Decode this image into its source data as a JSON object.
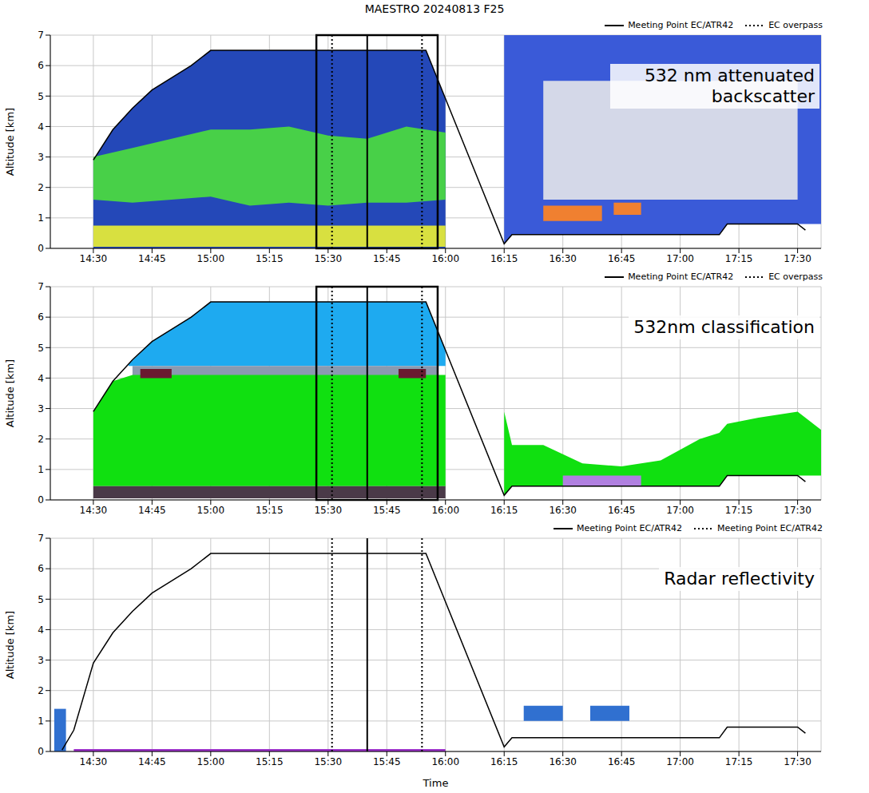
{
  "title": "MAESTRO 20240813 F25",
  "chart_data": [
    {
      "type": "area",
      "title": "532 nm attenuated backscatter",
      "y_label": "Altitude [km]",
      "xlim": [
        859,
        1056
      ],
      "xticks": [
        {
          "value": 870,
          "label": "14:30"
        },
        {
          "value": 885,
          "label": "14:45"
        },
        {
          "value": 900,
          "label": "15:00"
        },
        {
          "value": 915,
          "label": "15:15"
        },
        {
          "value": 930,
          "label": "15:30"
        },
        {
          "value": 945,
          "label": "15:45"
        },
        {
          "value": 960,
          "label": "16:00"
        },
        {
          "value": 975,
          "label": "16:15"
        },
        {
          "value": 990,
          "label": "16:30"
        },
        {
          "value": 1005,
          "label": "16:45"
        },
        {
          "value": 1020,
          "label": "17:00"
        },
        {
          "value": 1035,
          "label": "17:15"
        },
        {
          "value": 1050,
          "label": "17:30"
        }
      ],
      "ylim": [
        0,
        7
      ],
      "yticks": [
        0,
        1,
        2,
        3,
        4,
        5,
        6,
        7
      ],
      "grid": true,
      "legend": "top right",
      "bands": [
        {
          "color": "#2448b8",
          "x": [
            870,
            875,
            880,
            885,
            890,
            895,
            900,
            955,
            960
          ],
          "low": [
            0,
            0,
            0,
            0,
            0,
            0,
            0,
            0,
            0
          ],
          "high": [
            2.9,
            3.9,
            4.6,
            5.2,
            5.6,
            6.0,
            6.5,
            6.5,
            4.9
          ]
        },
        {
          "color": "#48d048",
          "x": [
            870,
            880,
            890,
            900,
            910,
            920,
            930,
            940,
            950,
            960
          ],
          "low": [
            1.6,
            1.5,
            1.6,
            1.7,
            1.4,
            1.5,
            1.4,
            1.5,
            1.5,
            1.6
          ],
          "high": [
            3.0,
            3.3,
            3.6,
            3.9,
            3.9,
            4.0,
            3.7,
            3.6,
            4.0,
            3.8
          ]
        },
        {
          "color": "#d8e040",
          "x": [
            870,
            960
          ],
          "low": [
            0.05,
            0.05
          ],
          "high": [
            0.75,
            0.75
          ]
        },
        {
          "color": "#3a5ad8",
          "x": [
            975,
            977,
            1030,
            1032,
            1056
          ],
          "low": [
            0.15,
            0.45,
            0.45,
            0.8,
            0.8
          ],
          "high": [
            7,
            7,
            7,
            7,
            7
          ]
        },
        {
          "color": "#d4d8e8",
          "x": [
            985,
            1050
          ],
          "low": [
            1.6,
            1.6
          ],
          "high": [
            5.5,
            5.5
          ]
        },
        {
          "color": "#f08030",
          "x": [
            985,
            1000
          ],
          "low": [
            0.9,
            0.9
          ],
          "high": [
            1.4,
            1.4
          ]
        },
        {
          "color": "#f08030",
          "x": [
            1003,
            1010
          ],
          "low": [
            1.1,
            1.1
          ],
          "high": [
            1.5,
            1.5
          ]
        }
      ],
      "flight": {
        "color": "#000000",
        "x": [
          870,
          875,
          880,
          885,
          890,
          895,
          900,
          955,
          975,
          977,
          1030,
          1032,
          1050,
          1052
        ],
        "values": [
          2.9,
          3.9,
          4.6,
          5.2,
          5.6,
          6.0,
          6.5,
          6.5,
          0.15,
          0.45,
          0.45,
          0.8,
          0.8,
          0.6
        ]
      },
      "reference_lines": [
        {
          "x": 940,
          "label": "Meeting Point EC/ATR42",
          "line_style": "solid"
        },
        {
          "x": 931,
          "label": "EC overpass",
          "line_style": "dotted"
        },
        {
          "x": 954,
          "label": "EC overpass",
          "line_style": "dotted"
        }
      ],
      "highlight": [
        927,
        958
      ]
    },
    {
      "type": "area",
      "title": "532nm classification",
      "y_label": "Altitude [km]",
      "xlim": [
        859,
        1056
      ],
      "xticks": [
        {
          "value": 870,
          "label": "14:30"
        },
        {
          "value": 885,
          "label": "14:45"
        },
        {
          "value": 900,
          "label": "15:00"
        },
        {
          "value": 915,
          "label": "15:15"
        },
        {
          "value": 930,
          "label": "15:30"
        },
        {
          "value": 945,
          "label": "15:45"
        },
        {
          "value": 960,
          "label": "16:00"
        },
        {
          "value": 975,
          "label": "16:15"
        },
        {
          "value": 990,
          "label": "16:30"
        },
        {
          "value": 1005,
          "label": "16:45"
        },
        {
          "value": 1020,
          "label": "17:00"
        },
        {
          "value": 1035,
          "label": "17:15"
        },
        {
          "value": 1050,
          "label": "17:30"
        }
      ],
      "ylim": [
        0,
        7
      ],
      "yticks": [
        0,
        1,
        2,
        3,
        4,
        5,
        6,
        7
      ],
      "grid": true,
      "legend": "top right",
      "bands": [
        {
          "color": "#1eaaf0",
          "x": [
            879,
            885,
            890,
            895,
            900,
            955,
            960
          ],
          "low": [
            4.4,
            4.4,
            4.4,
            4.4,
            4.4,
            4.4,
            4.4
          ],
          "high": [
            4.45,
            5.2,
            5.6,
            6.0,
            6.5,
            6.5,
            4.9
          ]
        },
        {
          "color": "#8a9ab0",
          "x": [
            880,
            900,
            920,
            940,
            958
          ],
          "low": [
            4.0,
            4.0,
            4.0,
            4.0,
            4.0
          ],
          "high": [
            4.4,
            4.4,
            4.4,
            4.4,
            4.4
          ]
        },
        {
          "color": "#10e010",
          "x": [
            870,
            875,
            880,
            900,
            955,
            960
          ],
          "low": [
            0.45,
            0.45,
            0.45,
            0.45,
            0.45,
            0.45
          ],
          "high": [
            2.9,
            3.9,
            4.1,
            4.1,
            4.1,
            4.1
          ]
        },
        {
          "color": "#6a1a30",
          "x": [
            882,
            890
          ],
          "low": [
            4.0,
            4.0
          ],
          "high": [
            4.3,
            4.3
          ]
        },
        {
          "color": "#6a1a30",
          "x": [
            948,
            955
          ],
          "low": [
            4.0,
            4.0
          ],
          "high": [
            4.3,
            4.3
          ]
        },
        {
          "color": "#4a3a48",
          "x": [
            870,
            960
          ],
          "low": [
            0.05,
            0.05
          ],
          "high": [
            0.45,
            0.45
          ]
        },
        {
          "color": "#10e010",
          "x": [
            975,
            977,
            985,
            995,
            1005,
            1015,
            1025,
            1030,
            1032,
            1040,
            1050,
            1056
          ],
          "low": [
            0.15,
            0.45,
            0.45,
            0.45,
            0.45,
            0.45,
            0.45,
            0.45,
            0.8,
            0.8,
            0.8,
            0.8
          ],
          "high": [
            2.9,
            1.8,
            1.8,
            1.2,
            1.1,
            1.3,
            2.0,
            2.2,
            2.5,
            2.7,
            2.9,
            2.3
          ]
        },
        {
          "color": "#b080e0",
          "x": [
            990,
            1010
          ],
          "low": [
            0.45,
            0.45
          ],
          "high": [
            0.8,
            0.8
          ]
        }
      ],
      "flight": {
        "color": "#000000",
        "x": [
          870,
          875,
          880,
          885,
          890,
          895,
          900,
          955,
          975,
          977,
          1030,
          1032,
          1050,
          1052
        ],
        "values": [
          2.9,
          3.9,
          4.6,
          5.2,
          5.6,
          6.0,
          6.5,
          6.5,
          0.15,
          0.45,
          0.45,
          0.8,
          0.8,
          0.6
        ]
      },
      "reference_lines": [
        {
          "x": 940,
          "label": "Meeting Point EC/ATR42",
          "line_style": "solid"
        },
        {
          "x": 931,
          "label": "EC overpass",
          "line_style": "dotted"
        },
        {
          "x": 954,
          "label": "EC overpass",
          "line_style": "dotted"
        }
      ],
      "highlight": [
        927,
        958
      ]
    },
    {
      "type": "area",
      "title": "Radar reflectivity",
      "y_label": "Altitude [km]",
      "x_label": "Time",
      "xlim": [
        859,
        1056
      ],
      "xticks": [
        {
          "value": 870,
          "label": "14:30"
        },
        {
          "value": 885,
          "label": "14:45"
        },
        {
          "value": 900,
          "label": "15:00"
        },
        {
          "value": 915,
          "label": "15:15"
        },
        {
          "value": 930,
          "label": "15:30"
        },
        {
          "value": 945,
          "label": "15:45"
        },
        {
          "value": 960,
          "label": "16:00"
        },
        {
          "value": 975,
          "label": "16:15"
        },
        {
          "value": 990,
          "label": "16:30"
        },
        {
          "value": 1005,
          "label": "16:45"
        },
        {
          "value": 1020,
          "label": "17:00"
        },
        {
          "value": 1035,
          "label": "17:15"
        },
        {
          "value": 1050,
          "label": "17:30"
        }
      ],
      "ylim": [
        0,
        7
      ],
      "yticks": [
        0,
        1,
        2,
        3,
        4,
        5,
        6,
        7
      ],
      "grid": true,
      "legend": "top right",
      "bands": [
        {
          "color": "#3070d0",
          "x": [
            860,
            863
          ],
          "low": [
            0,
            0
          ],
          "high": [
            1.4,
            1.4
          ]
        },
        {
          "color": "#9b30c8",
          "x": [
            865,
            960
          ],
          "low": [
            0,
            0
          ],
          "high": [
            0.08,
            0.08
          ]
        },
        {
          "color": "#3070d0",
          "x": [
            980,
            990
          ],
          "low": [
            1.0,
            1.0
          ],
          "high": [
            1.5,
            1.5
          ]
        },
        {
          "color": "#3070d0",
          "x": [
            997,
            1007
          ],
          "low": [
            1.0,
            1.0
          ],
          "high": [
            1.5,
            1.5
          ]
        }
      ],
      "flight": {
        "color": "#000000",
        "x": [
          862,
          865,
          870,
          875,
          880,
          885,
          890,
          895,
          900,
          955,
          975,
          977,
          1030,
          1032,
          1050,
          1052
        ],
        "values": [
          0.05,
          0.7,
          2.9,
          3.9,
          4.6,
          5.2,
          5.6,
          6.0,
          6.5,
          6.5,
          0.15,
          0.45,
          0.45,
          0.8,
          0.8,
          0.6
        ]
      },
      "reference_lines": [
        {
          "x": 940,
          "label": "Meeting Point EC/ATR42",
          "line_style": "solid"
        },
        {
          "x": 931,
          "label": "Meeting Point EC/ATR42",
          "line_style": "dotted"
        },
        {
          "x": 954,
          "label": "Meeting Point EC/ATR42",
          "line_style": "dotted"
        }
      ]
    }
  ]
}
